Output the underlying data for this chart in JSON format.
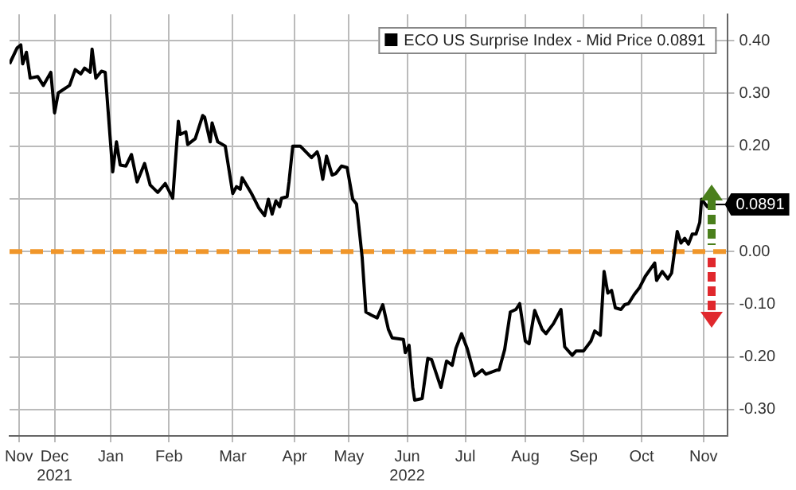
{
  "chart_data": {
    "type": "line",
    "x": [
      "2021-11-10",
      "2021-11-14",
      "2021-11-16",
      "2021-11-17",
      "2021-11-19",
      "2021-11-21",
      "2021-11-25",
      "2021-11-28",
      "2021-12-02",
      "2021-12-04",
      "2021-12-06",
      "2021-12-12",
      "2021-12-15",
      "2021-12-18",
      "2021-12-20",
      "2021-12-23",
      "2021-12-24",
      "2021-12-26",
      "2021-12-29",
      "2021-12-31",
      "2022-01-04",
      "2022-01-06",
      "2022-01-08",
      "2022-01-11",
      "2022-01-14",
      "2022-01-17",
      "2022-01-21",
      "2022-01-24",
      "2022-01-28",
      "2022-02-01",
      "2022-02-05",
      "2022-02-08",
      "2022-02-09",
      "2022-02-12",
      "2022-02-13",
      "2022-02-17",
      "2022-02-21",
      "2022-02-22",
      "2022-02-25",
      "2022-02-26",
      "2022-03-01",
      "2022-03-05",
      "2022-03-09",
      "2022-03-11",
      "2022-03-13",
      "2022-03-14",
      "2022-03-19",
      "2022-03-23",
      "2022-03-26",
      "2022-03-28",
      "2022-03-30",
      "2022-04-01",
      "2022-04-03",
      "2022-04-04",
      "2022-04-07",
      "2022-04-08",
      "2022-04-10",
      "2022-04-14",
      "2022-04-20",
      "2022-04-23",
      "2022-04-24",
      "2022-04-26",
      "2022-04-28",
      "2022-05-01",
      "2022-05-03",
      "2022-05-06",
      "2022-05-09",
      "2022-05-12",
      "2022-05-14",
      "2022-05-17",
      "2022-05-19",
      "2022-05-22",
      "2022-05-25",
      "2022-05-28",
      "2022-05-31",
      "2022-06-02",
      "2022-06-08",
      "2022-06-09",
      "2022-06-11",
      "2022-06-13",
      "2022-06-14",
      "2022-06-18",
      "2022-06-21",
      "2022-06-23",
      "2022-06-28",
      "2022-07-01",
      "2022-07-04",
      "2022-07-06",
      "2022-07-09",
      "2022-07-12",
      "2022-07-13",
      "2022-07-16",
      "2022-07-20",
      "2022-07-22",
      "2022-07-28",
      "2022-07-29",
      "2022-08-01",
      "2022-08-04",
      "2022-08-07",
      "2022-08-09",
      "2022-08-12",
      "2022-08-14",
      "2022-08-17",
      "2022-08-21",
      "2022-08-23",
      "2022-08-27",
      "2022-08-31",
      "2022-09-02",
      "2022-09-06",
      "2022-09-08",
      "2022-09-12",
      "2022-09-16",
      "2022-09-18",
      "2022-09-21",
      "2022-09-23",
      "2022-09-25",
      "2022-09-27",
      "2022-09-29",
      "2022-10-02",
      "2022-10-04",
      "2022-10-06",
      "2022-10-09",
      "2022-10-12",
      "2022-10-15",
      "2022-10-20",
      "2022-10-21",
      "2022-10-24",
      "2022-10-27",
      "2022-10-29",
      "2022-11-01",
      "2022-11-03",
      "2022-11-05",
      "2022-11-07",
      "2022-11-09",
      "2022-11-11",
      "2022-11-13",
      "2022-11-14",
      "2022-11-17",
      "2022-11-18"
    ],
    "series": [
      {
        "name": "ECO US Surprise Index - Mid Price 0.0891",
        "color": "#000000",
        "values": [
          0.356,
          0.386,
          0.392,
          0.356,
          0.378,
          0.329,
          0.332,
          0.315,
          0.34,
          0.263,
          0.301,
          0.315,
          0.345,
          0.337,
          0.348,
          0.34,
          0.384,
          0.329,
          0.342,
          0.34,
          0.151,
          0.208,
          0.164,
          0.162,
          0.184,
          0.132,
          0.167,
          0.126,
          0.112,
          0.129,
          0.101,
          0.247,
          0.222,
          0.227,
          0.203,
          0.214,
          0.258,
          0.255,
          0.208,
          0.244,
          0.208,
          0.2,
          0.11,
          0.123,
          0.118,
          0.14,
          0.11,
          0.082,
          0.068,
          0.099,
          0.071,
          0.096,
          0.085,
          0.101,
          0.104,
          0.132,
          0.2,
          0.2,
          0.178,
          0.189,
          0.178,
          0.137,
          0.181,
          0.145,
          0.148,
          0.162,
          0.159,
          0.099,
          0.09,
          -0.011,
          -0.115,
          -0.121,
          -0.126,
          -0.101,
          -0.148,
          -0.164,
          -0.167,
          -0.192,
          -0.178,
          -0.258,
          -0.282,
          -0.279,
          -0.203,
          -0.205,
          -0.258,
          -0.208,
          -0.216,
          -0.184,
          -0.156,
          -0.184,
          -0.197,
          -0.236,
          -0.225,
          -0.233,
          -0.225,
          -0.225,
          -0.186,
          -0.115,
          -0.11,
          -0.099,
          -0.17,
          -0.175,
          -0.112,
          -0.148,
          -0.156,
          -0.137,
          -0.11,
          -0.181,
          -0.197,
          -0.189,
          -0.189,
          -0.17,
          -0.151,
          -0.159,
          -0.038,
          -0.079,
          -0.074,
          -0.107,
          -0.11,
          -0.101,
          -0.099,
          -0.082,
          -0.068,
          -0.047,
          -0.022,
          -0.055,
          -0.038,
          -0.052,
          -0.041,
          0.038,
          0.016,
          0.025,
          0.014,
          0.033,
          0.033,
          0.055,
          0.099,
          0.085,
          0.0891
        ]
      }
    ],
    "xlim": [
      "2021-11-10",
      "2022-11-28"
    ],
    "xticks": [
      {
        "value": "2021-11-15",
        "label": "Nov"
      },
      {
        "value": "2021-12-04",
        "label": "Dec\n2021"
      },
      {
        "value": "2022-01-03",
        "label": "Jan"
      },
      {
        "value": "2022-02-03",
        "label": "Feb"
      },
      {
        "value": "2022-03-09",
        "label": "Mar"
      },
      {
        "value": "2022-04-11",
        "label": "Apr"
      },
      {
        "value": "2022-05-10",
        "label": "May"
      },
      {
        "value": "2022-06-10",
        "label": "Jun\n2022"
      },
      {
        "value": "2022-07-11",
        "label": "Jul"
      },
      {
        "value": "2022-08-12",
        "label": "Aug"
      },
      {
        "value": "2022-09-12",
        "label": "Sep"
      },
      {
        "value": "2022-10-13",
        "label": "Oct"
      },
      {
        "value": "2022-11-15",
        "label": "Nov"
      }
    ],
    "ylim": [
      -0.35,
      0.45
    ],
    "yticks": [
      {
        "value": -0.3,
        "label": "-0.30"
      },
      {
        "value": -0.2,
        "label": "-0.20"
      },
      {
        "value": -0.1,
        "label": "-0.10"
      },
      {
        "value": 0,
        "label": "0.00"
      },
      {
        "value": 0.1,
        "label": null
      },
      {
        "value": 0.2,
        "label": "0.20"
      },
      {
        "value": 0.3,
        "label": "0.30"
      },
      {
        "value": 0.4,
        "label": "0.40"
      }
    ],
    "ref_lines": [
      {
        "axis": "y",
        "value": 0,
        "color": "#f0962a",
        "line_style": "dashed"
      }
    ],
    "annotations": [
      {
        "text": "0.0891",
        "x": "2022-11-18",
        "y": 0.0891
      }
    ],
    "grid": true,
    "legend": "top right",
    "marker": "none",
    "line_style": "solid"
  }
}
